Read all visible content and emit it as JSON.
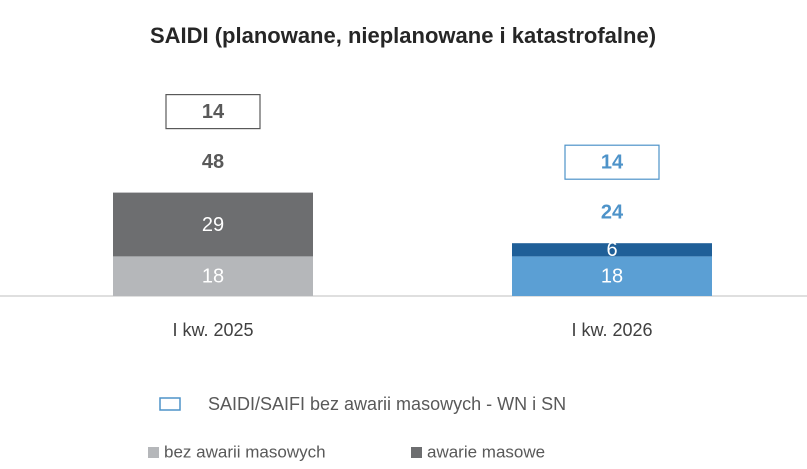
{
  "chart_data": {
    "type": "stacked_bar",
    "title": "SAIDI (planowane, nieplanowane i  katastrofalne)",
    "categories": [
      "I kw. 2025",
      "I kw. 2026"
    ],
    "series": [
      {
        "name": "bez awarii masowych",
        "values": [
          18,
          18
        ],
        "colors": [
          "#b5b7ba",
          "#5b9fd4"
        ]
      },
      {
        "name": "awarie masowe",
        "values": [
          29,
          6
        ],
        "colors": [
          "#6d6e70",
          "#1f5f98"
        ]
      }
    ],
    "totals": [
      48,
      24
    ],
    "total_colors": [
      "#595959",
      "#4e93c9"
    ],
    "boxed": {
      "name": "SAIDI/SAIFI bez awarii masowych - WN i SN",
      "values": [
        14,
        14
      ],
      "colors": [
        "#595959",
        "#4e93c9"
      ]
    }
  }
}
